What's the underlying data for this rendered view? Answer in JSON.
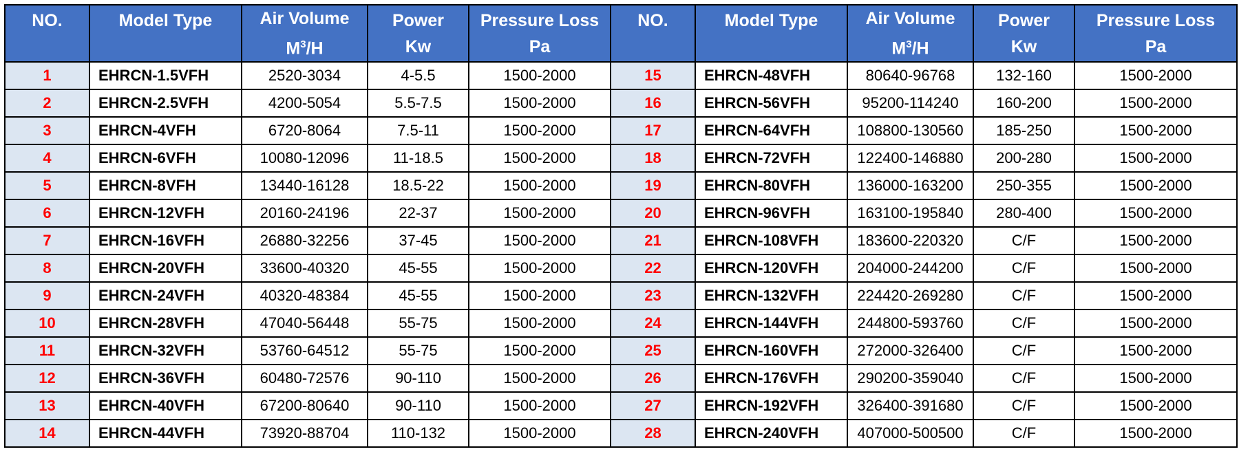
{
  "header": {
    "no": "NO.",
    "model_type": "Model Type",
    "air_volume": "Air Volume",
    "air_volume_unit_base": "M",
    "air_volume_unit_sup": "3",
    "air_volume_unit_rest": "/H",
    "power": "Power",
    "power_unit": "Kw",
    "pressure_loss": "Pressure Loss",
    "pressure_loss_unit": "Pa"
  },
  "rows": [
    {
      "left": {
        "no": "1",
        "model": "EHRCN-1.5VFH",
        "air": "2520-3034",
        "power": "4-5.5",
        "pressure": "1500-2000"
      },
      "right": {
        "no": "15",
        "model": "EHRCN-48VFH",
        "air": "80640-96768",
        "power": "132-160",
        "pressure": "1500-2000"
      }
    },
    {
      "left": {
        "no": "2",
        "model": "EHRCN-2.5VFH",
        "air": "4200-5054",
        "power": "5.5-7.5",
        "pressure": "1500-2000"
      },
      "right": {
        "no": "16",
        "model": "EHRCN-56VFH",
        "air": "95200-114240",
        "power": "160-200",
        "pressure": "1500-2000"
      }
    },
    {
      "left": {
        "no": "3",
        "model": "EHRCN-4VFH",
        "air": "6720-8064",
        "power": "7.5-11",
        "pressure": "1500-2000"
      },
      "right": {
        "no": "17",
        "model": "EHRCN-64VFH",
        "air": "108800-130560",
        "power": "185-250",
        "pressure": "1500-2000"
      }
    },
    {
      "left": {
        "no": "4",
        "model": "EHRCN-6VFH",
        "air": "10080-12096",
        "power": "11-18.5",
        "pressure": "1500-2000"
      },
      "right": {
        "no": "18",
        "model": "EHRCN-72VFH",
        "air": "122400-146880",
        "power": "200-280",
        "pressure": "1500-2000"
      }
    },
    {
      "left": {
        "no": "5",
        "model": "EHRCN-8VFH",
        "air": "13440-16128",
        "power": "18.5-22",
        "pressure": "1500-2000"
      },
      "right": {
        "no": "19",
        "model": "EHRCN-80VFH",
        "air": "136000-163200",
        "power": "250-355",
        "pressure": "1500-2000"
      }
    },
    {
      "left": {
        "no": "6",
        "model": "EHRCN-12VFH",
        "air": "20160-24196",
        "power": "22-37",
        "pressure": "1500-2000"
      },
      "right": {
        "no": "20",
        "model": "EHRCN-96VFH",
        "air": "163100-195840",
        "power": "280-400",
        "pressure": "1500-2000"
      }
    },
    {
      "left": {
        "no": "7",
        "model": "EHRCN-16VFH",
        "air": "26880-32256",
        "power": "37-45",
        "pressure": "1500-2000"
      },
      "right": {
        "no": "21",
        "model": "EHRCN-108VFH",
        "air": "183600-220320",
        "power": "C/F",
        "pressure": "1500-2000"
      }
    },
    {
      "left": {
        "no": "8",
        "model": "EHRCN-20VFH",
        "air": "33600-40320",
        "power": "45-55",
        "pressure": "1500-2000"
      },
      "right": {
        "no": "22",
        "model": "EHRCN-120VFH",
        "air": "204000-244200",
        "power": "C/F",
        "pressure": "1500-2000"
      }
    },
    {
      "left": {
        "no": "9",
        "model": "EHRCN-24VFH",
        "air": "40320-48384",
        "power": "45-55",
        "pressure": "1500-2000"
      },
      "right": {
        "no": "23",
        "model": "EHRCN-132VFH",
        "air": "224420-269280",
        "power": "C/F",
        "pressure": "1500-2000"
      }
    },
    {
      "left": {
        "no": "10",
        "model": "EHRCN-28VFH",
        "air": "47040-56448",
        "power": "55-75",
        "pressure": "1500-2000"
      },
      "right": {
        "no": "24",
        "model": "EHRCN-144VFH",
        "air": "244800-593760",
        "power": "C/F",
        "pressure": "1500-2000"
      }
    },
    {
      "left": {
        "no": "11",
        "model": "EHRCN-32VFH",
        "air": "53760-64512",
        "power": "55-75",
        "pressure": "1500-2000"
      },
      "right": {
        "no": "25",
        "model": "EHRCN-160VFH",
        "air": "272000-326400",
        "power": "C/F",
        "pressure": "1500-2000"
      }
    },
    {
      "left": {
        "no": "12",
        "model": "EHRCN-36VFH",
        "air": "60480-72576",
        "power": "90-110",
        "pressure": "1500-2000"
      },
      "right": {
        "no": "26",
        "model": "EHRCN-176VFH",
        "air": "290200-359040",
        "power": "C/F",
        "pressure": "1500-2000"
      }
    },
    {
      "left": {
        "no": "13",
        "model": "EHRCN-40VFH",
        "air": "67200-80640",
        "power": "90-110",
        "pressure": "1500-2000"
      },
      "right": {
        "no": "27",
        "model": "EHRCN-192VFH",
        "air": "326400-391680",
        "power": "C/F",
        "pressure": "1500-2000"
      }
    },
    {
      "left": {
        "no": "14",
        "model": "EHRCN-44VFH",
        "air": "73920-88704",
        "power": "110-132",
        "pressure": "1500-2000"
      },
      "right": {
        "no": "28",
        "model": "EHRCN-240VFH",
        "air": "407000-500500",
        "power": "C/F",
        "pressure": "1500-2000"
      }
    }
  ],
  "colors": {
    "header_bg": "#4472c4",
    "header_text": "#ffffff",
    "number_cell_bg": "#dce6f2",
    "number_text": "#ff0000",
    "border": "#000000"
  }
}
